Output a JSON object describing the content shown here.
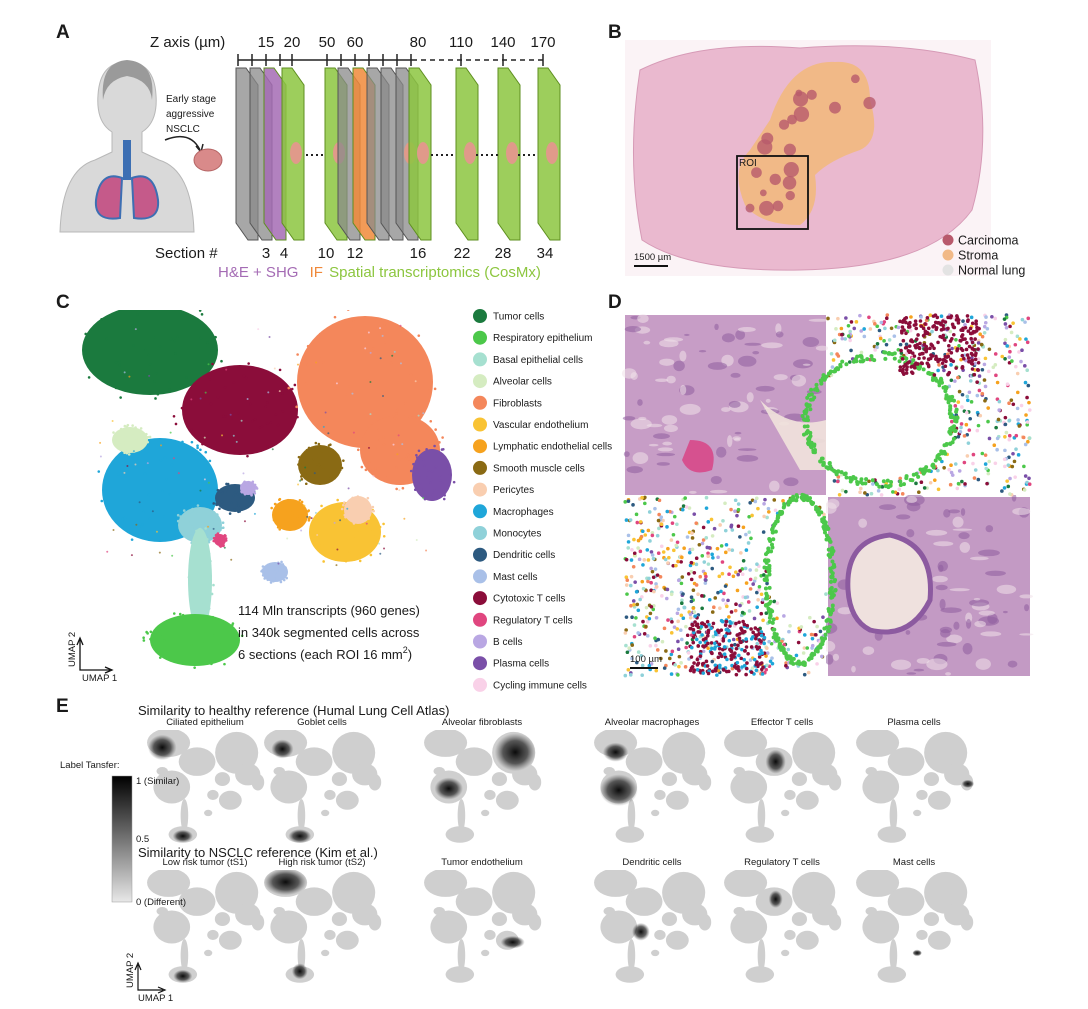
{
  "panels": {
    "a": {
      "label": "A",
      "z_axis_title": "Z axis (µm)",
      "z_ticks": [
        "15",
        "20",
        "50",
        "60",
        "80",
        "110",
        "140",
        "170"
      ],
      "patient_note": [
        "Early stage",
        "aggressive",
        "NSCLC"
      ],
      "section_title": "Section #",
      "sections": [
        "3",
        "4",
        "10",
        "12",
        "16",
        "22",
        "28",
        "34"
      ],
      "modalities": [
        {
          "name": "H&E + SHG",
          "color": "#a46bb4"
        },
        {
          "name": "IF",
          "color": "#f0893a"
        },
        {
          "name": "Spatial transcriptomics (CosMx)",
          "color": "#8cc63f"
        }
      ]
    },
    "b": {
      "label": "B",
      "roi": "ROI",
      "scale_bar": "1500 µm",
      "legend": [
        {
          "name": "Carcinoma",
          "color": "#b85a6c"
        },
        {
          "name": "Stroma",
          "color": "#f1b987"
        },
        {
          "name": "Normal lung",
          "color": "#e3e3e3"
        }
      ]
    },
    "c": {
      "label": "C",
      "cell_types": [
        {
          "name": "Tumor cells",
          "color": "#1b7a3e"
        },
        {
          "name": "Respiratory epithelium",
          "color": "#4cc84a"
        },
        {
          "name": "Basal epithelial cells",
          "color": "#a6e0d0"
        },
        {
          "name": "Alveolar cells",
          "color": "#d5ecc1"
        },
        {
          "name": "Fibroblasts",
          "color": "#f4875b"
        },
        {
          "name": "Vascular endothelium",
          "color": "#f9c334"
        },
        {
          "name": "Lymphatic endothelial cells",
          "color": "#f6a21e"
        },
        {
          "name": "Smooth muscle cells",
          "color": "#8a6a14"
        },
        {
          "name": "Pericytes",
          "color": "#f9ceb0"
        },
        {
          "name": "Macrophages",
          "color": "#1fa6d9"
        },
        {
          "name": "Monocytes",
          "color": "#8fd1d9"
        },
        {
          "name": "Dendritic cells",
          "color": "#2d5a80"
        },
        {
          "name": "Mast cells",
          "color": "#a9c0e8"
        },
        {
          "name": "Cytotoxic T cells",
          "color": "#8b0d3a"
        },
        {
          "name": "Regulatory T cells",
          "color": "#e0467f"
        },
        {
          "name": "B cells",
          "color": "#b9a7e3"
        },
        {
          "name": "Plasma cells",
          "color": "#7a4fa8"
        },
        {
          "name": "Cycling immune cells",
          "color": "#f9d1e8"
        }
      ],
      "summary_lines": [
        "114 Mln transcripts (960 genes)",
        "in 340k segmented cells across"
      ],
      "summary_last": {
        "text": "6 sections (each ROI 16 mm",
        "sup": "2",
        "end": ")"
      },
      "umap_y": "UMAP 2",
      "umap_x": "UMAP 1"
    },
    "d": {
      "label": "D",
      "scale_bar": "100 µm"
    },
    "e": {
      "label": "E",
      "rows": [
        {
          "title": "Similarity to healthy reference (Humal Lung Cell Atlas)",
          "panels": [
            "Ciliated epithelium",
            "Goblet cells",
            "Alveolar fibroblasts",
            "Alveolar macrophages",
            "Effector T cells",
            "Plasma cells"
          ]
        },
        {
          "title": "Similarity to NSCLC reference (Kim et al.)",
          "panels": [
            "Low risk tumor (tS1)",
            "High risk tumor (tS2)",
            "Tumor endothelium",
            "Dendritic cells",
            "Regulatory T cells",
            "Mast cells"
          ]
        }
      ],
      "colorbar": {
        "title": "Label Tansfer:",
        "ticks": [
          "1 (Similar)",
          "0.5",
          "0 (Different)"
        ]
      },
      "umap_y": "UMAP 2",
      "umap_x": "UMAP 1"
    }
  }
}
